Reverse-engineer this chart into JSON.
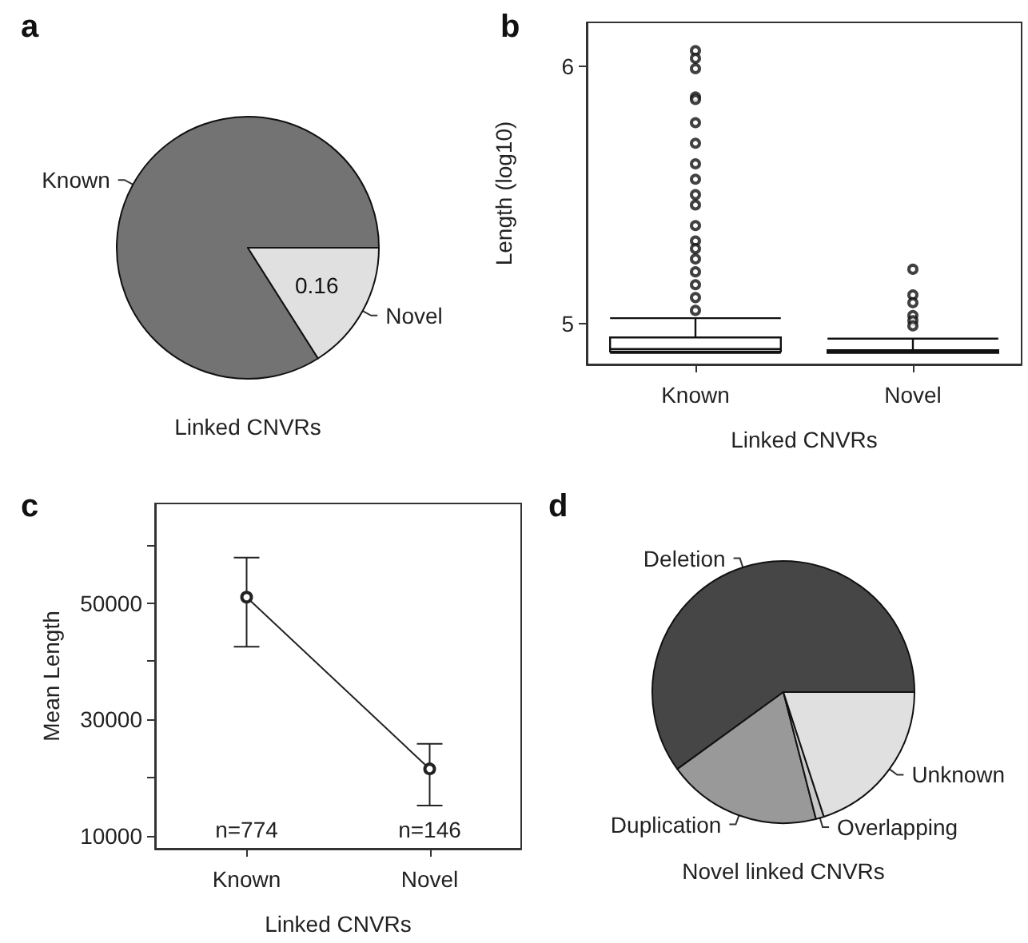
{
  "chart_data": [
    {
      "type": "pie",
      "title": "a",
      "categories": [
        "Known",
        "Novel"
      ],
      "values": [
        0.84,
        0.16
      ],
      "colors": [
        "#737373",
        "#e0e0e0"
      ],
      "value_labels": [
        null,
        "0.16"
      ],
      "annotations": [
        "Linked CNVRs"
      ]
    },
    {
      "type": "box",
      "title": "b",
      "ylabel": "Length (log10)",
      "xlabel": "Linked CNVRs",
      "categories": [
        "Known",
        "Novel"
      ],
      "boxes": [
        {
          "low": 4.885,
          "q1": 4.89,
          "median": 4.9,
          "q3": 4.945,
          "high": 5.02,
          "outliers": [
            6.06,
            6.03,
            5.99,
            5.88,
            5.87,
            5.78,
            5.7,
            5.62,
            5.56,
            5.5,
            5.46,
            5.38,
            5.32,
            5.29,
            5.25,
            5.2,
            5.15,
            5.1,
            5.05
          ]
        },
        {
          "low": 4.885,
          "q1": 4.885,
          "median": 4.89,
          "q3": 4.895,
          "high": 4.94,
          "outliers": [
            5.21,
            5.11,
            5.08,
            5.03,
            5.01,
            4.99
          ]
        }
      ],
      "ylim": [
        4.84,
        6.17
      ],
      "yticks": [
        5,
        6
      ]
    },
    {
      "type": "line",
      "title": "c",
      "ylabel": "Mean Length",
      "xlabel": "Linked CNVRs",
      "categories": [
        "Known",
        "Novel"
      ],
      "series": [
        {
          "color": "#222222",
          "values": [
            51000,
            21500
          ],
          "errors": [
            [
              42500,
              57800
            ],
            [
              15200,
              25800
            ]
          ]
        }
      ],
      "ylim": [
        7800,
        67100
      ],
      "yticks": [
        10000,
        {
          "value": 20000,
          "label": null
        },
        30000,
        {
          "value": 40000,
          "label": null
        },
        50000,
        {
          "value": 60000,
          "label": null
        }
      ],
      "marker": "circle",
      "annotations": [
        "n=774",
        "n=146"
      ]
    },
    {
      "type": "pie",
      "title": "d",
      "categories": [
        "Deletion",
        "Duplication",
        "Overlapping",
        "Unknown"
      ],
      "values": [
        60,
        19,
        1,
        20
      ],
      "colors": [
        "#464646",
        "#999999",
        "#c8c8c8",
        "#e0e0e0"
      ],
      "annotations": [
        "Novel linked CNVRs"
      ]
    }
  ]
}
